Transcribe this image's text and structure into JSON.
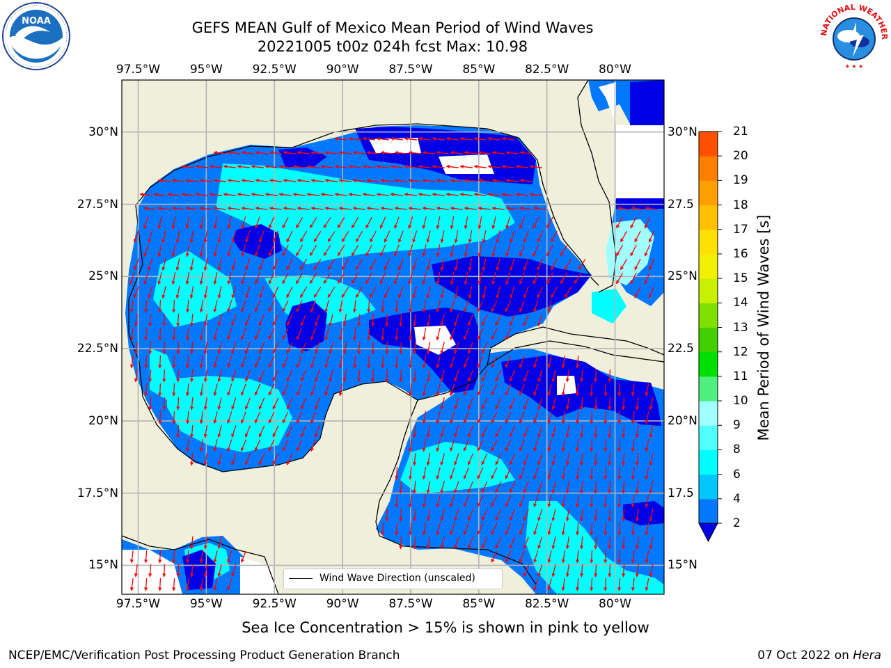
{
  "title": {
    "line1": "GEFS MEAN Gulf of Mexico Mean Period of Wind Waves",
    "line2": "20221005 t00z 024h fcst   Max: 10.98"
  },
  "logos": {
    "left": {
      "name": "NOAA",
      "ring_text": "NATIONAL OCEANIC AND ATMOSPHERIC ADMINISTRATION · U.S. DEPARTMENT OF COMMERCE"
    },
    "right": {
      "ring_text": "NATIONAL WEATHER SERVICE"
    }
  },
  "axes": {
    "lon_ticks": [
      "97.5°W",
      "95°W",
      "92.5°W",
      "90°W",
      "87.5°W",
      "85°W",
      "82.5°W",
      "80°W"
    ],
    "lat_ticks_left": [
      "30°N",
      "27.5°N",
      "25°N",
      "22.5°N",
      "20°N",
      "17.5°N",
      "15°N"
    ],
    "lat_ticks_right": [
      "30°N",
      "27.5",
      "25°N",
      "22.5",
      "20°N",
      "17.5",
      "15°N"
    ],
    "lon_values": [
      -97.5,
      -95,
      -92.5,
      -90,
      -87.5,
      -85,
      -82.5,
      -80
    ],
    "lat_values": [
      30,
      27.5,
      25,
      22.5,
      20,
      17.5,
      15
    ],
    "extent": {
      "lon_min": -98.1,
      "lon_max": -78.2,
      "lat_min": 14.0,
      "lat_max": 31.8
    },
    "grid": true
  },
  "colorbar": {
    "label": "Mean Period of Wind Waves [s]",
    "ticks": [
      "2",
      "4",
      "6",
      "8",
      "9",
      "10",
      "11",
      "12",
      "13",
      "14",
      "15",
      "16",
      "17",
      "18",
      "19",
      "20",
      "21"
    ],
    "extend": "min",
    "colors": [
      "#0000e6",
      "#0078ff",
      "#00c8ff",
      "#00ffff",
      "#50ffff",
      "#a0ffff",
      "#50f080",
      "#00e000",
      "#40d000",
      "#80e000",
      "#c8f000",
      "#f0f000",
      "#ffe000",
      "#ffc000",
      "#ffa000",
      "#ff8000",
      "#ff5000",
      "#ff2800",
      "#ff0000"
    ]
  },
  "legend": {
    "label": "Wind Wave Direction (unscaled)"
  },
  "note": "Sea Ice Concentration > 15% is shown in pink to yellow",
  "footer": {
    "left": "NCEP/EMC/Verification Post Processing Product Generation Branch",
    "right_prefix": "07 Oct 2022 on ",
    "right_machine": "Hera"
  },
  "colors": {
    "land": "#efefdc",
    "grid": "#b4b4b4",
    "arrows": "#ff0000",
    "c2_4": "#0078ff",
    "c_lt2": "#0000e6",
    "c4_6": "#00ffff",
    "c6_8": "#50ffff",
    "c8_9": "#a0ffff"
  }
}
